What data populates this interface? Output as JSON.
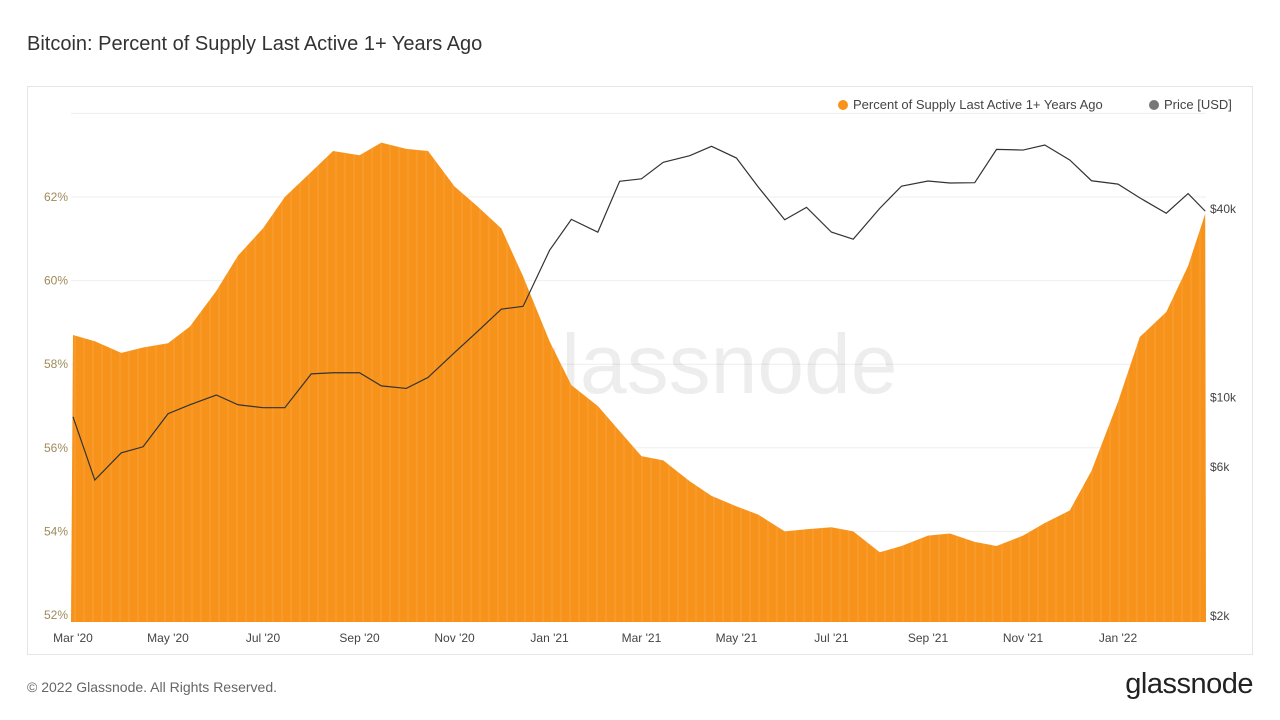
{
  "title": "Bitcoin: Percent of Supply Last Active 1+ Years Ago",
  "footer": "© 2022 Glassnode. All Rights Reserved.",
  "logo": "glassnode",
  "watermark": "glassnode",
  "colors": {
    "supply": "#f7931a",
    "price": "#333333",
    "left_axis": "#a08a5a",
    "grid": "#eeeeee"
  },
  "chart_data": {
    "type": "area",
    "title": "Bitcoin: Percent of Supply Last Active 1+ Years Ago",
    "legend": {
      "placement": "top-right",
      "entries": [
        "Percent of Supply Last Active 1+ Years Ago",
        "Price [USD]"
      ]
    },
    "grid": true,
    "x_ticks": [
      "Mar '20",
      "May '20",
      "Jul '20",
      "Sep '20",
      "Nov '20",
      "Jan '21",
      "Mar '21",
      "May '21",
      "Jul '21",
      "Sep '21",
      "Nov '21",
      "Jan '22"
    ],
    "x_tick_dates": [
      "2020-03-01",
      "2020-05-01",
      "2020-07-01",
      "2020-09-01",
      "2020-11-01",
      "2021-01-01",
      "2021-03-01",
      "2021-05-01",
      "2021-07-01",
      "2021-09-01",
      "2021-11-01",
      "2022-01-01"
    ],
    "x_range": [
      "2020-03-01",
      "2022-02-26"
    ],
    "y_left": {
      "range": [
        52,
        64
      ],
      "ticks": [
        52,
        54,
        56,
        58,
        60,
        62
      ],
      "tick_labels": [
        "52%",
        "54%",
        "56%",
        "58%",
        "60%",
        "62%"
      ]
    },
    "y_right": {
      "scale": "log",
      "range": [
        2000,
        90000
      ],
      "ticks": [
        2000,
        6000,
        10000,
        40000
      ],
      "tick_labels": [
        "$2k",
        "$6k",
        "$10k",
        "$40k"
      ]
    },
    "dates": [
      "2020-03-01",
      "2020-03-15",
      "2020-04-01",
      "2020-04-15",
      "2020-05-01",
      "2020-05-15",
      "2020-06-01",
      "2020-06-15",
      "2020-07-01",
      "2020-07-15",
      "2020-08-01",
      "2020-08-15",
      "2020-09-01",
      "2020-09-15",
      "2020-10-01",
      "2020-10-15",
      "2020-11-01",
      "2020-11-15",
      "2020-12-01",
      "2020-12-15",
      "2021-01-01",
      "2021-01-15",
      "2021-02-01",
      "2021-02-15",
      "2021-03-01",
      "2021-03-15",
      "2021-04-01",
      "2021-04-15",
      "2021-05-01",
      "2021-05-15",
      "2021-06-01",
      "2021-06-15",
      "2021-07-01",
      "2021-07-15",
      "2021-08-01",
      "2021-08-15",
      "2021-09-01",
      "2021-09-15",
      "2021-10-01",
      "2021-10-15",
      "2021-11-01",
      "2021-11-15",
      "2021-12-01",
      "2021-12-15",
      "2022-01-01",
      "2022-01-15",
      "2022-02-01",
      "2022-02-15",
      "2022-02-26"
    ],
    "series": [
      {
        "name": "Percent of Supply Last Active 1+ Years Ago",
        "axis": "left",
        "type": "area",
        "values": [
          58.7,
          58.55,
          58.27,
          58.4,
          58.5,
          58.9,
          59.75,
          60.6,
          61.25,
          62.0,
          62.6,
          63.1,
          63.0,
          63.3,
          63.15,
          63.1,
          62.25,
          61.8,
          61.25,
          60.1,
          58.55,
          57.5,
          57.0,
          56.4,
          55.8,
          55.7,
          55.2,
          54.85,
          54.6,
          54.4,
          54.0,
          54.05,
          54.1,
          54.0,
          53.5,
          53.65,
          53.9,
          53.95,
          53.75,
          53.65,
          53.9,
          54.2,
          54.5,
          55.45,
          57.1,
          58.65,
          59.25,
          60.35,
          61.6
        ]
      },
      {
        "name": "Price [USD]",
        "axis": "right",
        "type": "line",
        "values": [
          8600,
          5400,
          6600,
          6900,
          8800,
          9400,
          10100,
          9400,
          9200,
          9200,
          11800,
          11900,
          11900,
          10800,
          10600,
          11500,
          13800,
          16000,
          19000,
          19400,
          29300,
          36800,
          33500,
          48700,
          49600,
          56000,
          58800,
          63000,
          57800,
          46700,
          36700,
          40200,
          33500,
          31800,
          39900,
          47000,
          48800,
          48100,
          48200,
          61600,
          61300,
          63600,
          57000,
          48900,
          47700,
          43100,
          38500,
          44500,
          39100
        ]
      }
    ]
  }
}
